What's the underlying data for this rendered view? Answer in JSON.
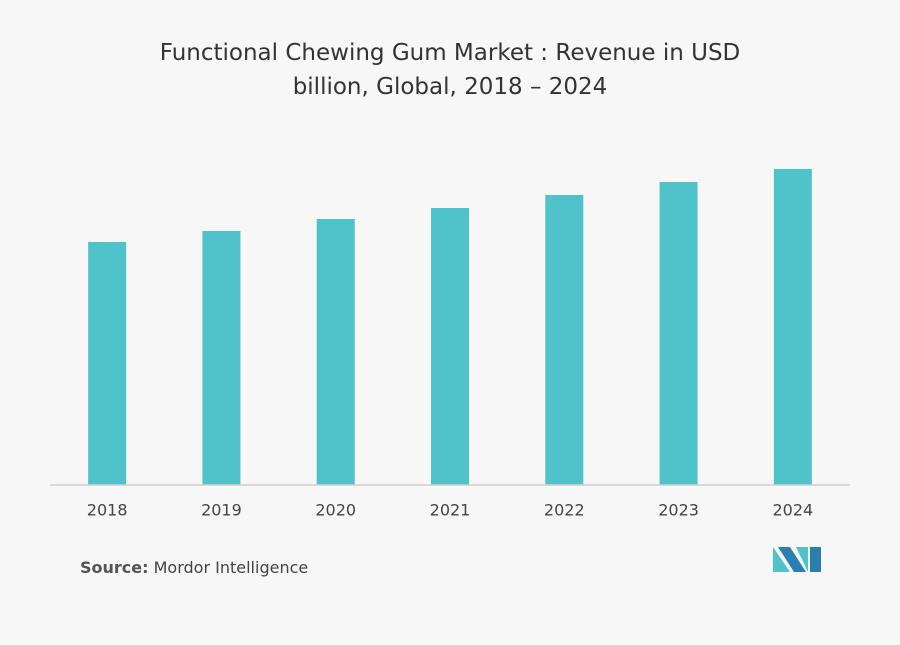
{
  "chart_data": {
    "type": "bar",
    "title": "Functional Chewing Gum Market : Revenue in USD billion, Global, 2018 – 2024",
    "categories": [
      "2018",
      "2019",
      "2020",
      "2021",
      "2022",
      "2023",
      "2024"
    ],
    "values": [
      243,
      254,
      266,
      277,
      290,
      303,
      316
    ],
    "color": "#4fc3c9",
    "ylim": [
      0,
      400
    ],
    "source_label": "Source:",
    "source": "Mordor Intelligence"
  }
}
